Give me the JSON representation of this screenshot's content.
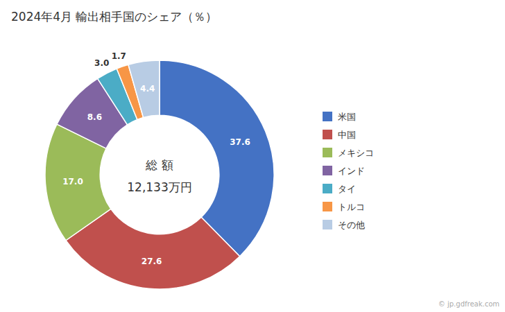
{
  "chart_data": {
    "type": "donut",
    "title": "2024年4月 輸出相手国のシェア（％）",
    "categories": [
      "米国",
      "中国",
      "メキシコ",
      "インド",
      "タイ",
      "トルコ",
      "その他"
    ],
    "values": [
      37.6,
      27.6,
      17.0,
      8.6,
      3.0,
      1.7,
      4.4
    ],
    "value_labels": [
      "37.6",
      "27.6",
      "17.0",
      "8.6",
      "3.0",
      "1.7",
      "4.4"
    ],
    "colors": [
      "#4472C4",
      "#C0504D",
      "#9BBB59",
      "#8064A2",
      "#4BACC6",
      "#F79646",
      "#B8CCE4"
    ],
    "annotations": [
      "総 額",
      "12,133万円",
      "© jp.gdfreak.com"
    ],
    "data_labels": true,
    "legend": "right"
  }
}
